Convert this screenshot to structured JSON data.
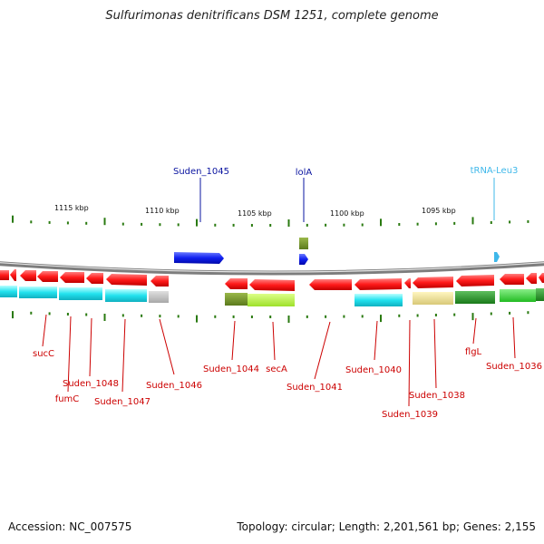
{
  "title": "Sulfurimonas denitrificans DSM 1251, complete genome",
  "footer": {
    "accession": "Accession: NC_007575",
    "topology": "Topology: circular; Length: 2,201,561 bp; Genes: 2,155"
  },
  "scale_labels": [
    "1115 kbp",
    "1110 kbp",
    "1105 kbp",
    "1100 kbp",
    "1095 kbp"
  ],
  "labels_top": [
    "Suden_1045",
    "lolA",
    "tRNA-Leu3"
  ],
  "labels_bottom": [
    "sucC",
    "fumC",
    "Suden_1048",
    "Suden_1047",
    "Suden_1046",
    "Suden_1044",
    "secA",
    "Suden_1041",
    "Suden_1040",
    "Suden_1039",
    "Suden_1038",
    "flgL",
    "Suden_1036"
  ],
  "colors": {
    "forward_gene": "#0a14e0",
    "reverse_gene": "#e01010",
    "trna": "#3fb8ea",
    "label_red": "#cc0000",
    "label_blue": "#0a14a0",
    "label_cyan": "#3fb8ea",
    "tick": "#2a7a10",
    "backbone": "#8c8c8c"
  }
}
